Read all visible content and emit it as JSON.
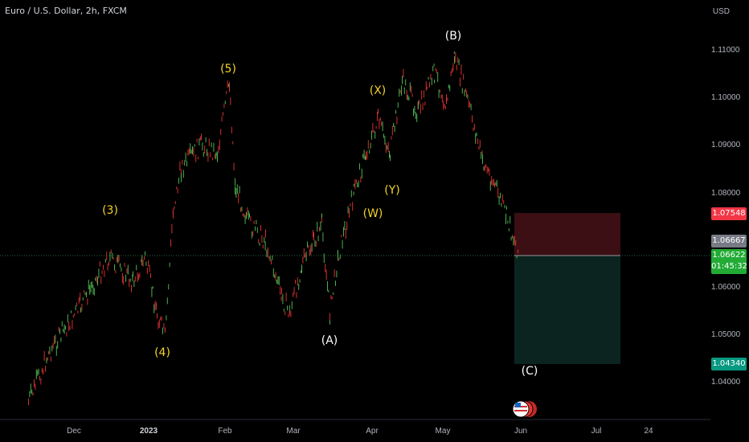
{
  "header": {
    "symbol_title": "Euro / U.S. Dollar, 2h, FXCM",
    "currency": "USD"
  },
  "price_axis": {
    "labels": [
      "1.11000",
      "1.10000",
      "1.09000",
      "1.08000",
      "1.06000",
      "1.05000",
      "1.04000"
    ],
    "tags": {
      "stop": {
        "value": "1.07548",
        "color": "#f23645"
      },
      "prev": {
        "value": "1.06667",
        "color": "#787b86"
      },
      "current": {
        "value": "1.06622",
        "countdown": "01:45:32",
        "color": "#22ab35"
      },
      "target": {
        "value": "1.04340",
        "color": "#089981"
      }
    }
  },
  "time_axis": {
    "labels": [
      {
        "text": "Dec",
        "bold": false
      },
      {
        "text": "2023",
        "bold": true
      },
      {
        "text": "Feb",
        "bold": false
      },
      {
        "text": "Mar",
        "bold": false
      },
      {
        "text": "Apr",
        "bold": false
      },
      {
        "text": "May",
        "bold": false
      },
      {
        "text": "Jun",
        "bold": false
      },
      {
        "text": "Jul",
        "bold": false
      },
      {
        "text": "24",
        "bold": false
      }
    ]
  },
  "wave_labels": [
    {
      "text": "(3)",
      "style": "y"
    },
    {
      "text": "(4)",
      "style": "y"
    },
    {
      "text": "(5)",
      "style": "y"
    },
    {
      "text": "(A)",
      "style": "w"
    },
    {
      "text": "(W)",
      "style": "y"
    },
    {
      "text": "(X)",
      "style": "y"
    },
    {
      "text": "(Y)",
      "style": "y"
    },
    {
      "text": "(B)",
      "style": "w"
    },
    {
      "text": "(C)",
      "style": "w"
    }
  ],
  "position_tool": {
    "entry": 1.06622,
    "stop": 1.07548,
    "target": 1.0434
  },
  "colors": {
    "up": "#26a69a",
    "down": "#ef5350",
    "candle_up": "#4caf50",
    "candle_down": "#d32f2f",
    "risk_zone": "#3b0f14",
    "reward_zone": "#0c2420"
  },
  "icons": [
    "us-flag-event-icon"
  ]
}
